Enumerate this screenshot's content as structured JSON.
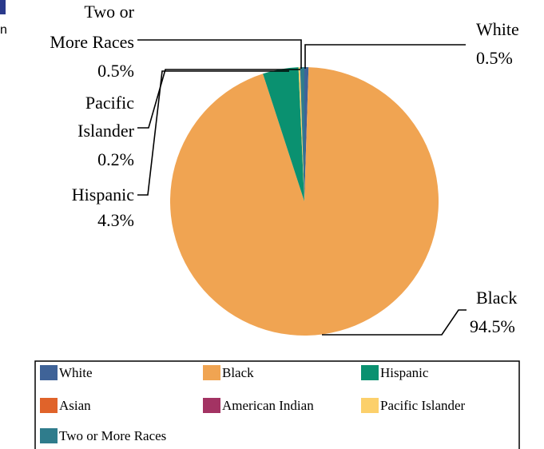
{
  "chart_data": {
    "type": "pie",
    "title": "",
    "slices": [
      {
        "name": "White",
        "value": 0.5,
        "label": "0.5%",
        "color": "#3f6398"
      },
      {
        "name": "Black",
        "value": 94.5,
        "label": "94.5%",
        "color": "#f0a452"
      },
      {
        "name": "Hispanic",
        "value": 4.3,
        "label": "4.3%",
        "color": "#0a9170"
      },
      {
        "name": "Asian",
        "value": 0.0,
        "label": "",
        "color": "#e0632a"
      },
      {
        "name": "American Indian",
        "value": 0.0,
        "label": "",
        "color": "#a33363"
      },
      {
        "name": "Pacific Islander",
        "value": 0.2,
        "label": "0.2%",
        "color": "#fcd06b"
      },
      {
        "name": "Two or More Races",
        "value": 0.5,
        "label": "0.5%",
        "color": "#2f7c8c"
      }
    ],
    "callouts": {
      "white": [
        "White",
        "0.5%"
      ],
      "black": [
        "Black",
        "94.5%"
      ],
      "hispanic": [
        "Hispanic",
        "4.3%"
      ],
      "pacific": [
        "Pacific",
        "Islander",
        "0.2%"
      ],
      "two_more": [
        "Two or",
        "More Races",
        "0.5%"
      ]
    },
    "legend": {
      "placement": "bottom",
      "items": [
        "White",
        "Black",
        "Hispanic",
        "Asian",
        "American Indian",
        "Pacific Islander",
        "Two or More Races"
      ]
    },
    "edge_fragment": "n",
    "edge_accent_color": "#2a3a8c"
  }
}
